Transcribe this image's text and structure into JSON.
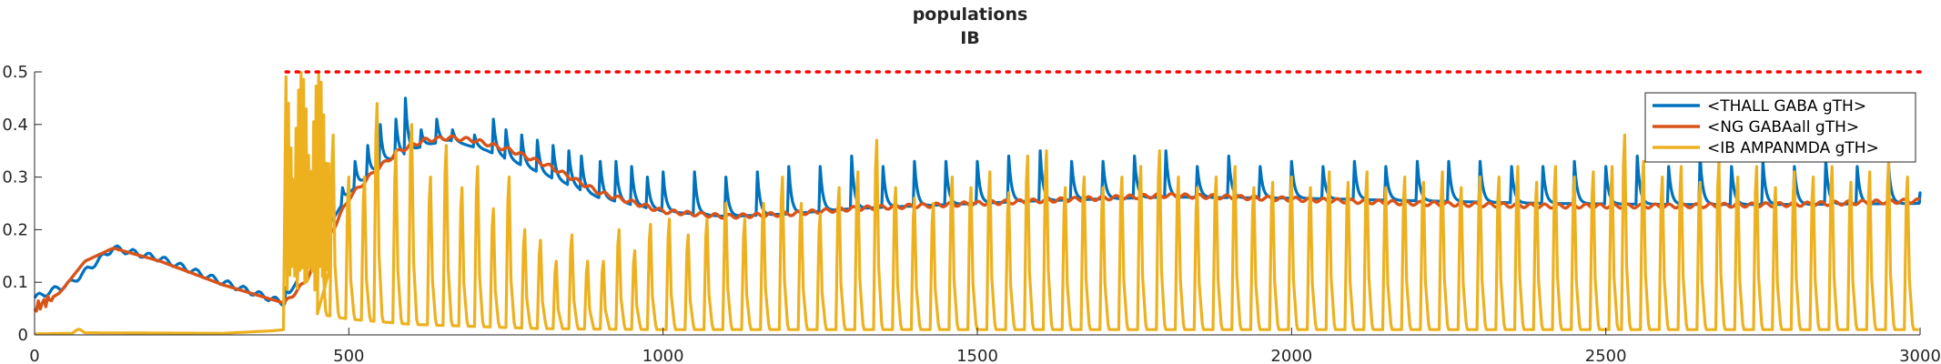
{
  "chart_data": {
    "type": "line",
    "title": "populations",
    "subtitle": "IB",
    "xlabel": "",
    "ylabel": "",
    "xlim": [
      0,
      3000
    ],
    "ylim": [
      0,
      0.5
    ],
    "xticks": [
      "0",
      "500",
      "1000",
      "1500",
      "2000",
      "2500",
      "3000"
    ],
    "yticks": [
      "0",
      "0.1",
      "0.2",
      "0.3",
      "0.4",
      "0.5"
    ],
    "grid": false,
    "legend_position": "top-right",
    "threshold": {
      "y": 0.5,
      "x_start": 400,
      "x_end": 3000,
      "color": "#ff0000",
      "style": "dotted"
    },
    "series": [
      {
        "name": "<THALL GABA gTH>",
        "color": "#0072BD",
        "baseline": [
          [
            0,
            0.07
          ],
          [
            60,
            0.1
          ],
          [
            125,
            0.165
          ],
          [
            200,
            0.145
          ],
          [
            300,
            0.1
          ],
          [
            398,
            0.06
          ],
          [
            430,
            0.13
          ],
          [
            500,
            0.27
          ],
          [
            560,
            0.33
          ],
          [
            620,
            0.36
          ],
          [
            660,
            0.37
          ],
          [
            720,
            0.35
          ],
          [
            800,
            0.31
          ],
          [
            900,
            0.26
          ],
          [
            1000,
            0.235
          ],
          [
            1100,
            0.225
          ],
          [
            1200,
            0.23
          ],
          [
            1300,
            0.24
          ],
          [
            1400,
            0.245
          ],
          [
            1600,
            0.255
          ],
          [
            1800,
            0.262
          ],
          [
            2000,
            0.26
          ],
          [
            2200,
            0.255
          ],
          [
            2400,
            0.25
          ],
          [
            2600,
            0.248
          ],
          [
            2800,
            0.248
          ],
          [
            3000,
            0.25
          ]
        ],
        "peaks": [
          [
            400,
            0.09
          ],
          [
            420,
            0.16
          ],
          [
            440,
            0.2
          ],
          [
            460,
            0.24
          ],
          [
            490,
            0.28
          ],
          [
            510,
            0.33
          ],
          [
            530,
            0.36
          ],
          [
            550,
            0.4
          ],
          [
            575,
            0.41
          ],
          [
            590,
            0.45
          ],
          [
            615,
            0.39
          ],
          [
            640,
            0.41
          ],
          [
            665,
            0.39
          ],
          [
            700,
            0.38
          ],
          [
            730,
            0.41
          ],
          [
            750,
            0.39
          ],
          [
            775,
            0.38
          ],
          [
            800,
            0.37
          ],
          [
            825,
            0.36
          ],
          [
            850,
            0.35
          ],
          [
            870,
            0.34
          ],
          [
            900,
            0.33
          ],
          [
            925,
            0.33
          ],
          [
            950,
            0.32
          ],
          [
            975,
            0.3
          ],
          [
            1000,
            0.31
          ],
          [
            1050,
            0.31
          ],
          [
            1100,
            0.3
          ],
          [
            1150,
            0.31
          ],
          [
            1200,
            0.32
          ],
          [
            1250,
            0.32
          ],
          [
            1300,
            0.34
          ],
          [
            1350,
            0.32
          ],
          [
            1400,
            0.33
          ],
          [
            1450,
            0.33
          ],
          [
            1500,
            0.33
          ],
          [
            1550,
            0.34
          ],
          [
            1600,
            0.35
          ],
          [
            1650,
            0.33
          ],
          [
            1700,
            0.33
          ],
          [
            1750,
            0.34
          ],
          [
            1800,
            0.35
          ],
          [
            1850,
            0.32
          ],
          [
            1900,
            0.34
          ],
          [
            1950,
            0.32
          ],
          [
            2000,
            0.33
          ],
          [
            2050,
            0.32
          ],
          [
            2100,
            0.33
          ],
          [
            2150,
            0.32
          ],
          [
            2200,
            0.33
          ],
          [
            2250,
            0.33
          ],
          [
            2300,
            0.33
          ],
          [
            2350,
            0.32
          ],
          [
            2400,
            0.32
          ],
          [
            2450,
            0.33
          ],
          [
            2500,
            0.32
          ],
          [
            2550,
            0.34
          ],
          [
            2600,
            0.32
          ],
          [
            2650,
            0.34
          ],
          [
            2700,
            0.32
          ],
          [
            2750,
            0.33
          ],
          [
            2800,
            0.32
          ],
          [
            2850,
            0.33
          ],
          [
            2900,
            0.32
          ],
          [
            2950,
            0.32
          ],
          [
            3000,
            0.27
          ]
        ]
      },
      {
        "name": "<NG GABAall gTH>",
        "color": "#D95319",
        "baseline": [
          [
            0,
            0.05
          ],
          [
            40,
            0.08
          ],
          [
            80,
            0.14
          ],
          [
            125,
            0.165
          ],
          [
            200,
            0.14
          ],
          [
            300,
            0.095
          ],
          [
            398,
            0.06
          ],
          [
            430,
            0.1
          ],
          [
            470,
            0.19
          ],
          [
            500,
            0.26
          ],
          [
            540,
            0.31
          ],
          [
            580,
            0.35
          ],
          [
            620,
            0.37
          ],
          [
            660,
            0.375
          ],
          [
            700,
            0.37
          ],
          [
            760,
            0.35
          ],
          [
            820,
            0.32
          ],
          [
            900,
            0.27
          ],
          [
            1000,
            0.235
          ],
          [
            1100,
            0.225
          ],
          [
            1200,
            0.23
          ],
          [
            1300,
            0.24
          ],
          [
            1400,
            0.245
          ],
          [
            1500,
            0.25
          ],
          [
            1600,
            0.255
          ],
          [
            1700,
            0.26
          ],
          [
            1800,
            0.265
          ],
          [
            1900,
            0.262
          ],
          [
            2000,
            0.258
          ],
          [
            2200,
            0.25
          ],
          [
            2400,
            0.245
          ],
          [
            2600,
            0.245
          ],
          [
            2800,
            0.248
          ],
          [
            3000,
            0.255
          ]
        ]
      },
      {
        "name": "<IB AMPANMDA gTH>",
        "color": "#EDB120",
        "baseline": [
          [
            0,
            0.002
          ],
          [
            60,
            0.003
          ],
          [
            70,
            0.012
          ],
          [
            80,
            0.004
          ],
          [
            300,
            0.003
          ],
          [
            380,
            0.008
          ],
          [
            398,
            0.01
          ],
          [
            450,
            0.04
          ],
          [
            500,
            0.03
          ],
          [
            600,
            0.02
          ],
          [
            800,
            0.012
          ],
          [
            1000,
            0.01
          ],
          [
            1500,
            0.01
          ],
          [
            2000,
            0.01
          ],
          [
            2500,
            0.01
          ],
          [
            3000,
            0.01
          ]
        ],
        "peaks": [
          [
            455,
            0.42
          ],
          [
            475,
            0.38
          ],
          [
            500,
            0.3
          ],
          [
            525,
            0.3
          ],
          [
            545,
            0.44
          ],
          [
            575,
            0.35
          ],
          [
            600,
            0.4
          ],
          [
            630,
            0.3
          ],
          [
            655,
            0.36
          ],
          [
            680,
            0.28
          ],
          [
            705,
            0.32
          ],
          [
            730,
            0.24
          ],
          [
            755,
            0.3
          ],
          [
            780,
            0.2
          ],
          [
            805,
            0.18
          ],
          [
            830,
            0.14
          ],
          [
            855,
            0.19
          ],
          [
            880,
            0.14
          ],
          [
            905,
            0.14
          ],
          [
            930,
            0.2
          ],
          [
            955,
            0.16
          ],
          [
            980,
            0.21
          ],
          [
            1010,
            0.22
          ],
          [
            1040,
            0.19
          ],
          [
            1070,
            0.22
          ],
          [
            1100,
            0.25
          ],
          [
            1130,
            0.22
          ],
          [
            1160,
            0.25
          ],
          [
            1190,
            0.3
          ],
          [
            1220,
            0.25
          ],
          [
            1250,
            0.23
          ],
          [
            1280,
            0.28
          ],
          [
            1310,
            0.31
          ],
          [
            1340,
            0.37
          ],
          [
            1370,
            0.28
          ],
          [
            1400,
            0.26
          ],
          [
            1430,
            0.25
          ],
          [
            1460,
            0.3
          ],
          [
            1490,
            0.28
          ],
          [
            1520,
            0.31
          ],
          [
            1550,
            0.27
          ],
          [
            1580,
            0.34
          ],
          [
            1610,
            0.35
          ],
          [
            1640,
            0.28
          ],
          [
            1670,
            0.3
          ],
          [
            1700,
            0.28
          ],
          [
            1730,
            0.3
          ],
          [
            1760,
            0.32
          ],
          [
            1790,
            0.35
          ],
          [
            1820,
            0.3
          ],
          [
            1850,
            0.28
          ],
          [
            1880,
            0.3
          ],
          [
            1910,
            0.32
          ],
          [
            1940,
            0.28
          ],
          [
            1970,
            0.29
          ],
          [
            2000,
            0.3
          ],
          [
            2030,
            0.28
          ],
          [
            2060,
            0.31
          ],
          [
            2090,
            0.29
          ],
          [
            2120,
            0.31
          ],
          [
            2150,
            0.28
          ],
          [
            2180,
            0.3
          ],
          [
            2210,
            0.29
          ],
          [
            2240,
            0.31
          ],
          [
            2270,
            0.28
          ],
          [
            2300,
            0.3
          ],
          [
            2330,
            0.3
          ],
          [
            2360,
            0.32
          ],
          [
            2390,
            0.29
          ],
          [
            2420,
            0.32
          ],
          [
            2450,
            0.3
          ],
          [
            2480,
            0.31
          ],
          [
            2510,
            0.32
          ],
          [
            2530,
            0.38
          ],
          [
            2560,
            0.33
          ],
          [
            2590,
            0.3
          ],
          [
            2620,
            0.32
          ],
          [
            2650,
            0.29
          ],
          [
            2680,
            0.33
          ],
          [
            2710,
            0.3
          ],
          [
            2740,
            0.32
          ],
          [
            2770,
            0.28
          ],
          [
            2800,
            0.31
          ],
          [
            2830,
            0.3
          ],
          [
            2860,
            0.32
          ],
          [
            2890,
            0.29
          ],
          [
            2920,
            0.31
          ],
          [
            2950,
            0.33
          ],
          [
            2980,
            0.3
          ]
        ],
        "burst": {
          "x_start": 400,
          "x_end": 470,
          "max": 0.5
        }
      }
    ]
  }
}
